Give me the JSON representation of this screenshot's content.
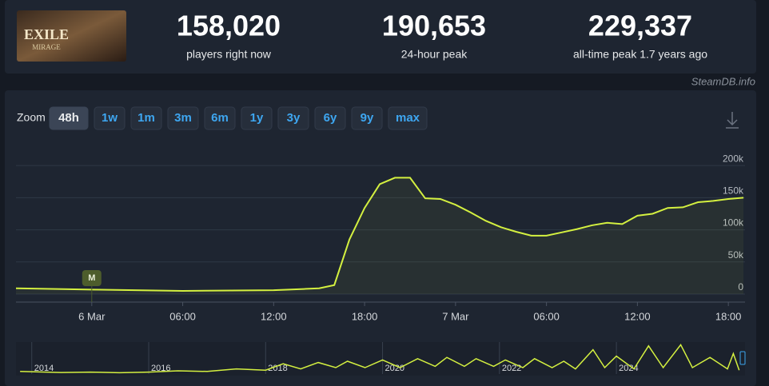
{
  "logo": {
    "title": "EXILE",
    "subtitle": "MIRAGE"
  },
  "stats": [
    {
      "value": "158,020",
      "label": "players right now"
    },
    {
      "value": "190,653",
      "label": "24-hour peak"
    },
    {
      "value": "229,337",
      "label": "all-time peak 1.7 years ago"
    }
  ],
  "credit": "SteamDB.info",
  "zoom": {
    "label": "Zoom",
    "options": [
      "48h",
      "1w",
      "1m",
      "3m",
      "6m",
      "1y",
      "3y",
      "6y",
      "9y",
      "max"
    ],
    "active": "48h"
  },
  "chart_data": [
    {
      "type": "line",
      "color": "#d4f040",
      "x": [
        -5,
        0,
        6,
        12,
        14,
        15,
        16,
        17,
        18,
        19,
        20,
        21,
        22,
        23,
        24,
        25,
        26,
        27,
        28,
        29,
        30,
        31,
        32,
        33,
        34,
        35,
        36,
        37,
        38,
        39,
        40,
        41,
        42,
        43
      ],
      "values": [
        9000,
        7000,
        5000,
        6000,
        8000,
        9000,
        14000,
        85000,
        134000,
        171000,
        181000,
        181000,
        149000,
        148000,
        139000,
        127000,
        114000,
        104000,
        97000,
        91000,
        91000,
        96000,
        101000,
        107000,
        111000,
        109000,
        122000,
        125000,
        134000,
        135000,
        143000,
        145000,
        148000,
        150000
      ],
      "xlim": [
        -5,
        43.1
      ],
      "xticks": [
        {
          "value": 0,
          "label": "6 Mar"
        },
        {
          "value": 6,
          "label": "06:00"
        },
        {
          "value": 12,
          "label": "12:00"
        },
        {
          "value": 18,
          "label": "18:00"
        },
        {
          "value": 24,
          "label": "7 Mar"
        },
        {
          "value": 30,
          "label": "06:00"
        },
        {
          "value": 36,
          "label": "12:00"
        },
        {
          "value": 42,
          "label": "18:00"
        }
      ],
      "ylim": [
        0,
        235000
      ],
      "yticks": [
        0,
        {
          "value": 50000,
          "label": "50k"
        },
        {
          "value": 100000,
          "label": "100k"
        },
        {
          "value": 150000,
          "label": "150k"
        },
        {
          "value": 200000,
          "label": "200k"
        }
      ],
      "grid": true,
      "annotations": [
        {
          "x": 0,
          "label": "M"
        }
      ]
    },
    {
      "type": "line",
      "color": "#d4f040",
      "x": [
        2013.8,
        2014.5,
        2015,
        2015.5,
        2016,
        2016.5,
        2017,
        2017.5,
        2018,
        2018.3,
        2018.6,
        2018.9,
        2019.2,
        2019.4,
        2019.7,
        2020,
        2020.3,
        2020.6,
        2020.9,
        2021.1,
        2021.4,
        2021.6,
        2021.9,
        2022.1,
        2022.4,
        2022.6,
        2022.9,
        2023.1,
        2023.3,
        2023.6,
        2023.8,
        2024,
        2024.3,
        2024.55,
        2024.8,
        2025.1,
        2025.3,
        2025.6,
        2025.9,
        2026,
        2026.1
      ],
      "values": [
        20000,
        12000,
        15000,
        10000,
        15000,
        25000,
        20000,
        40000,
        30000,
        80000,
        40000,
        90000,
        50000,
        100000,
        50000,
        110000,
        50000,
        120000,
        60000,
        130000,
        60000,
        120000,
        60000,
        110000,
        50000,
        120000,
        50000,
        100000,
        40000,
        190000,
        50000,
        140000,
        40000,
        220000,
        50000,
        229000,
        50000,
        130000,
        40000,
        160000,
        30000
      ],
      "xlim": [
        2013.73,
        2026.2
      ],
      "xticks": [
        2014,
        2016,
        2018,
        2020,
        2022,
        2024
      ],
      "ylim": [
        0,
        250000
      ]
    }
  ]
}
